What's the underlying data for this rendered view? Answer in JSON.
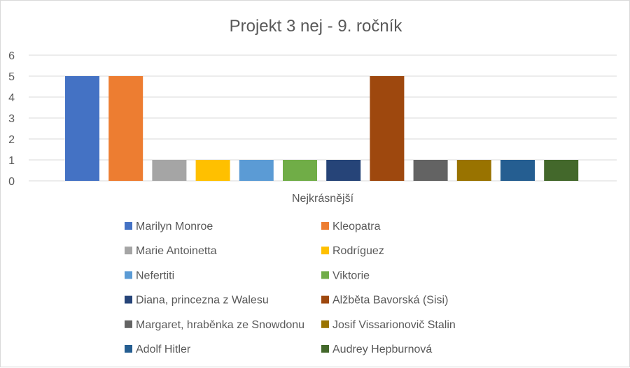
{
  "chart_data": {
    "type": "bar",
    "title": "Projekt 3 nej - 9. ročník",
    "categories": [
      "Nejkrásnější"
    ],
    "xlabel": "",
    "ylabel": "",
    "ylim": [
      0,
      6
    ],
    "yticks": [
      0,
      1,
      2,
      3,
      4,
      5,
      6
    ],
    "grid": true,
    "legend_position": "bottom",
    "series": [
      {
        "name": "Marilyn Monroe",
        "values": [
          5
        ],
        "color": "#4472C4"
      },
      {
        "name": "Kleopatra",
        "values": [
          5
        ],
        "color": "#ED7D31"
      },
      {
        "name": "Marie Antoinetta",
        "values": [
          1
        ],
        "color": "#A5A5A5"
      },
      {
        "name": "Rodríguez",
        "values": [
          1
        ],
        "color": "#FFC000"
      },
      {
        "name": "Nefertiti",
        "values": [
          1
        ],
        "color": "#5B9BD5"
      },
      {
        "name": "Viktorie",
        "values": [
          1
        ],
        "color": "#70AD47"
      },
      {
        "name": "Diana, princezna z Walesu",
        "values": [
          1
        ],
        "color": "#264478"
      },
      {
        "name": "Alžběta Bavorská (Sisi)",
        "values": [
          5
        ],
        "color": "#9E480E"
      },
      {
        "name": "Margaret, hraběnka ze Snowdonu",
        "values": [
          1
        ],
        "color": "#636363"
      },
      {
        "name": "Josif Vissarionovič Stalin",
        "values": [
          1
        ],
        "color": "#997300"
      },
      {
        "name": "Adolf Hitler",
        "values": [
          1
        ],
        "color": "#255E91"
      },
      {
        "name": "Audrey Hepburnová",
        "values": [
          1
        ],
        "color": "#43682B"
      }
    ]
  }
}
